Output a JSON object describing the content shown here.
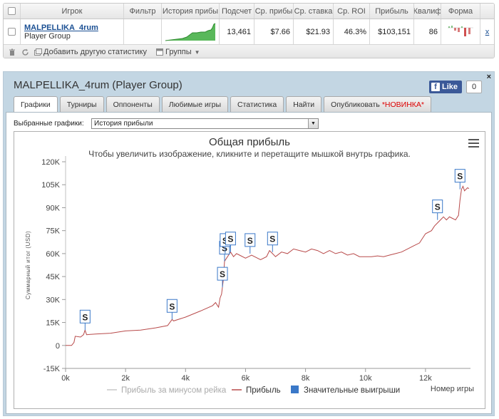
{
  "table": {
    "headers": {
      "player": "Игрок",
      "filter": "Фильтр",
      "history": "История прибы",
      "count": "Подсчет",
      "avg_profit": "Ср. прибы",
      "avg_stake": "Ср. ставка",
      "avg_roi": "Ср. ROI",
      "profit": "Прибыль",
      "qualif": "Квалиф",
      "form": "Форма"
    },
    "row": {
      "player_name": "MALPELLIKA_4rum",
      "player_group": "Player Group",
      "count": "13,461",
      "avg_profit": "$7.66",
      "avg_stake": "$21.93",
      "avg_roi": "46.3%",
      "profit": "$103,151",
      "qualif": "86",
      "remove": "x"
    },
    "footer": {
      "add_stat": "Добавить другую статистику",
      "groups": "Группы"
    }
  },
  "panel": {
    "title": "MALPELLIKA_4rum (Player Group)",
    "fb_like": "Like",
    "fb_count": "0",
    "close": "×",
    "tabs": [
      {
        "label": "Графики"
      },
      {
        "label": "Турниры"
      },
      {
        "label": "Оппоненты"
      },
      {
        "label": "Любимые игры"
      },
      {
        "label": "Статистика"
      },
      {
        "label": "Найти"
      },
      {
        "label": "Опубликовать",
        "badge": "*НОВИНКА*"
      }
    ],
    "selected_label": "Выбранные графики:",
    "selected_value": "История прибыли"
  },
  "chart_data": {
    "type": "line",
    "title": "Общая прибыль",
    "subtitle": "Чтобы увеличить изображение, кликните и перетащите мышкой внутрь графика.",
    "ylabel": "Суммарный итог (USD)",
    "xlabel": "Номер игры",
    "ylim": [
      -15000,
      120000
    ],
    "xlim": [
      0,
      13500
    ],
    "yticks": [
      "-15K",
      "0",
      "15K",
      "30K",
      "45K",
      "60K",
      "75K",
      "90K",
      "105K",
      "120K"
    ],
    "xticks": [
      "0k",
      "2k",
      "4k",
      "6k",
      "8k",
      "10k",
      "12k"
    ],
    "legend": [
      {
        "name": "Прибыль за минусом рейка",
        "color": "#c8c8c8"
      },
      {
        "name": "Прибыль",
        "color": "#b84a4a"
      },
      {
        "name": "Значительные выигрыши",
        "color": "#3a78c8"
      }
    ],
    "series": [
      {
        "name": "Прибыль",
        "x": [
          0,
          200,
          280,
          320,
          500,
          600,
          650,
          700,
          1000,
          1500,
          2000,
          2500,
          3000,
          3400,
          3550,
          3600,
          4000,
          4500,
          4900,
          5000,
          5100,
          5150,
          5200,
          5230,
          5260,
          5300,
          5400,
          5500,
          5600,
          5700,
          5800,
          6000,
          6200,
          6500,
          6700,
          6800,
          6900,
          7000,
          7200,
          7400,
          7600,
          7800,
          8000,
          8200,
          8400,
          8600,
          8800,
          9000,
          9200,
          9400,
          9600,
          9800,
          10000,
          10200,
          10400,
          10600,
          10800,
          11000,
          11200,
          11400,
          11600,
          11800,
          11900,
          12000,
          12200,
          12300,
          12400,
          12500,
          12600,
          12700,
          12800,
          12900,
          13000,
          13100,
          13150,
          13200,
          13250,
          13300,
          13400,
          13450
        ],
        "values": [
          0,
          0,
          2000,
          6000,
          5500,
          7000,
          10000,
          7000,
          7500,
          8000,
          9500,
          10000,
          11500,
          13000,
          17000,
          16000,
          18500,
          22500,
          26000,
          28000,
          25000,
          31000,
          33500,
          38000,
          43000,
          55000,
          58000,
          61000,
          58000,
          60000,
          59000,
          57000,
          59000,
          56000,
          58000,
          62000,
          60000,
          58000,
          61000,
          60000,
          63000,
          62000,
          61000,
          63000,
          62000,
          60000,
          62000,
          60000,
          61000,
          59000,
          60000,
          58000,
          58000,
          58000,
          58500,
          58000,
          59000,
          60000,
          61000,
          63000,
          65000,
          67000,
          70000,
          73000,
          75000,
          78000,
          80000,
          82000,
          84000,
          82000,
          84000,
          83000,
          82000,
          85000,
          95000,
          102000,
          104000,
          101000,
          103000,
          102500
        ]
      }
    ],
    "big_wins": {
      "x": [
        650,
        3550,
        5230,
        5300,
        5320,
        5500,
        6150,
        6900,
        12400,
        13150
      ],
      "values": [
        10000,
        17000,
        38000,
        55000,
        60000,
        61000,
        60000,
        61000,
        82000,
        102000
      ],
      "marker": "S"
    }
  }
}
